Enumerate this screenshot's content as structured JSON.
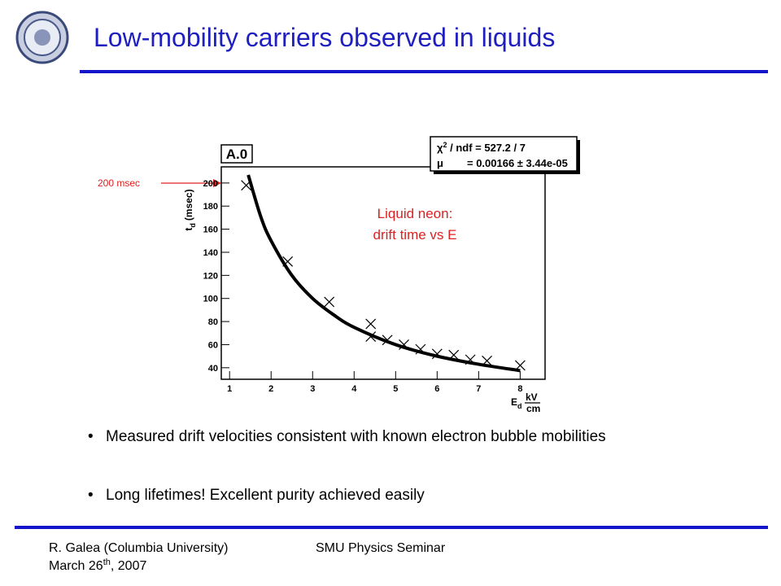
{
  "header": {
    "title": "Low-mobility carriers observed in liquids"
  },
  "chart_data": {
    "type": "scatter",
    "label": "A.0",
    "stats": {
      "chi_symbol": "χ",
      "chi_power": "2",
      "chi_text": " / ndf = 527.2 / 7",
      "mu_symbol": "μ",
      "mu_text": "= 0.00166 ± 3.44e-05"
    },
    "x_label": {
      "main": "E",
      "sub": "d",
      "num": "kV",
      "den": "cm"
    },
    "y_label": {
      "main": "t",
      "sub": "d",
      "unit": "(msec)"
    },
    "annotations": {
      "note_line1": "Liquid neon:",
      "note_line2": "drift time vs E",
      "arrow_label": "200 msec"
    },
    "xlim": [
      0.8,
      8.6
    ],
    "ylim": [
      30,
      214
    ],
    "xticks": [
      1,
      2,
      3,
      4,
      5,
      6,
      7,
      8
    ],
    "yticks": [
      40,
      60,
      80,
      100,
      120,
      140,
      160,
      180,
      200
    ],
    "grid": false,
    "series": [
      {
        "name": "data",
        "color": "#000000",
        "x": [
          1.4,
          2.4,
          3.4,
          4.4,
          4.4,
          4.8,
          5.2,
          5.6,
          6.0,
          6.4,
          6.8,
          7.2,
          8.0
        ],
        "values": [
          198,
          132,
          97,
          78,
          67,
          64,
          60,
          56,
          52,
          51,
          47,
          46,
          42
        ]
      },
      {
        "name": "fit",
        "color": "#000000",
        "x": [
          1.45,
          1.75,
          2,
          2.5,
          3,
          3.5,
          4,
          5,
          6,
          7,
          8
        ],
        "values": [
          207,
          171,
          150,
          120,
          100,
          86,
          75,
          60,
          50,
          43,
          37.5
        ]
      }
    ]
  },
  "bullets": [
    "Measured drift velocities consistent with known electron bubble mobilities",
    "Long lifetimes! Excellent purity achieved easily"
  ],
  "footer": {
    "author": "R. Galea (Columbia University)",
    "date_start": "March 26",
    "date_sup": "th",
    "date_end": ", 2007",
    "event": "SMU Physics Seminar"
  }
}
